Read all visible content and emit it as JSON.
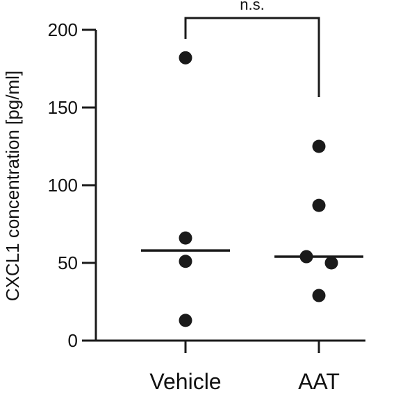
{
  "chart_data": {
    "type": "scatter",
    "ylabel": "CXCL1 concentration [pg/ml]",
    "ylim": [
      0,
      200
    ],
    "yticks": [
      0,
      50,
      100,
      150,
      200
    ],
    "categories": [
      "Vehicle",
      "AAT"
    ],
    "groups": [
      {
        "category": "Vehicle",
        "points": [
          182,
          66,
          51,
          13
        ],
        "mean": 58
      },
      {
        "category": "AAT",
        "points": [
          125,
          87,
          54,
          50,
          29
        ],
        "mean": 54
      }
    ],
    "significance": {
      "label": "n.s.",
      "between": [
        "Vehicle",
        "AAT"
      ]
    },
    "colors": {
      "points": "#1a1a1a",
      "axis": "#1a1a1a"
    }
  }
}
